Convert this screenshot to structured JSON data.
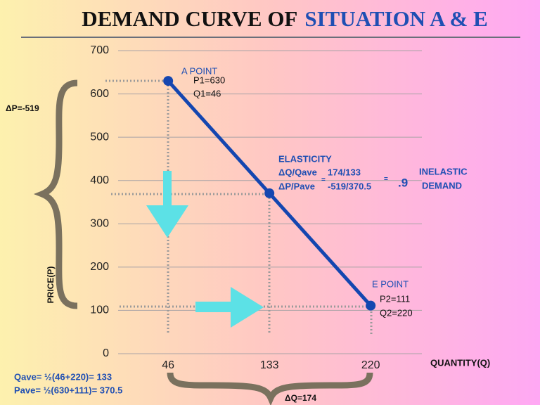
{
  "chart_data": {
    "type": "line",
    "title": "DEMAND CURVE OF",
    "title_highlight": "SITUATION A & E",
    "x": [
      46,
      133,
      220
    ],
    "series": [
      {
        "name": "Demand",
        "color": "#1446b0",
        "values": [
          630,
          370.5,
          111
        ]
      }
    ],
    "xlim": [
      3,
      264
    ],
    "xticks": [
      46,
      133,
      220
    ],
    "ylim": [
      0,
      700
    ],
    "yticks": [
      0,
      100,
      200,
      300,
      400,
      500,
      600,
      700
    ],
    "grid": true,
    "y_label": "PRICE(P)",
    "x_label": "QUANTITY(Q)",
    "annotations": {
      "a_point": "A POINT",
      "p1": "P1=630",
      "q1": "Q1=46",
      "elasticity": "ELASTICITY",
      "dq_qave": "ΔQ/Qave",
      "dq_ratio": "174/133",
      "dp_pave": "ΔP/Pave",
      "dp_ratio": "-519/370.5",
      "eq1": "=",
      "eq2": "=",
      "result": ".9",
      "inelastic": "INELASTIC",
      "demand": "DEMAND",
      "e_point": "E POINT",
      "p2": "P2=111",
      "q2": "Q2=220",
      "delta_p": "ΔP=-519",
      "delta_q": "ΔQ=174",
      "qave": "Qave= ½(46+220)= 133",
      "pave": "Pave= ½(630+111)= 370.5"
    }
  }
}
